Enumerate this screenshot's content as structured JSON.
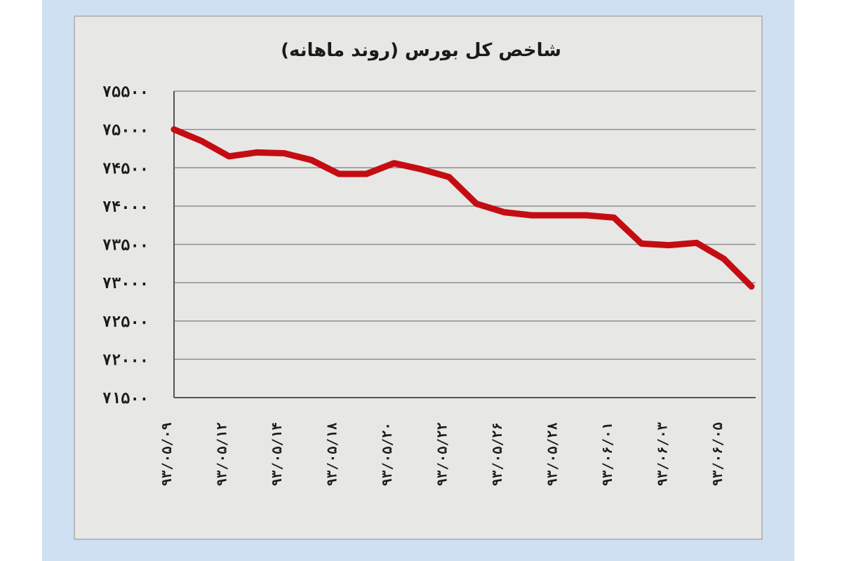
{
  "chart_data": {
    "type": "line",
    "title": "شاخص کل بورس (روند ماهانه)",
    "xlabel": "",
    "ylabel": "",
    "ylim": [
      71500,
      75500
    ],
    "yticks": [
      75500,
      75000,
      74500,
      74000,
      73500,
      73000,
      72500,
      72000,
      71500
    ],
    "ytick_labels": [
      "۷۵۵۰۰",
      "۷۵۰۰۰",
      "۷۴۵۰۰",
      "۷۴۰۰۰",
      "۷۳۵۰۰",
      "۷۳۰۰۰",
      "۷۲۵۰۰",
      "۷۲۰۰۰",
      "۷۱۵۰۰"
    ],
    "x_tick_labels": [
      "۹۳/۰۵/۰۹",
      "۹۳/۰۵/۱۲",
      "۹۳/۰۵/۱۴",
      "۹۳/۰۵/۱۸",
      "۹۳/۰۵/۲۰",
      "۹۳/۰۵/۲۲",
      "۹۳/۰۵/۲۶",
      "۹۳/۰۵/۲۸",
      "۹۳/۰۶/۰۱",
      "۹۳/۰۶/۰۳",
      "۹۳/۰۶/۰۵"
    ],
    "grid": true,
    "legend": "none",
    "series": [
      {
        "color": "#c40d12",
        "values": [
          75000,
          74850,
          74650,
          74700,
          74690,
          74600,
          74420,
          74420,
          74560,
          74480,
          74380,
          74030,
          73920,
          73880,
          73880,
          73880,
          73850,
          73510,
          73490,
          73520,
          73310,
          72950
        ]
      }
    ]
  }
}
